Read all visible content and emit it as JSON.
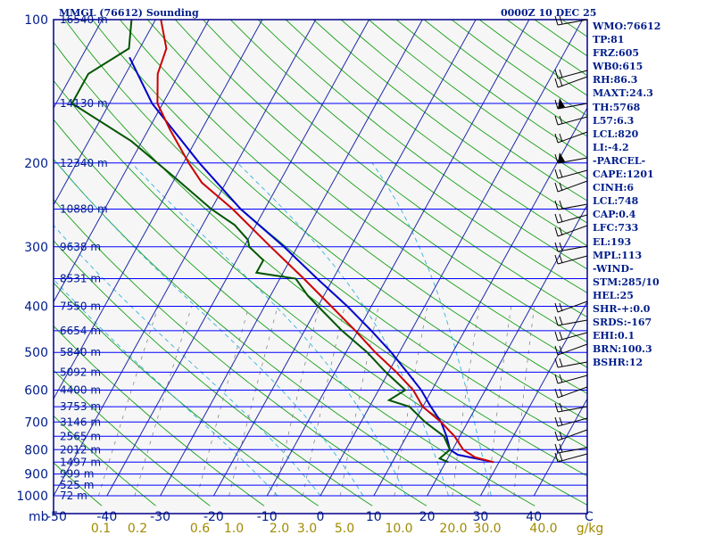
{
  "header": {
    "title": "MMGL (76612) Sounding",
    "time": "0000Z 10 DEC 25"
  },
  "stats": [
    "WMO:76612",
    "TP:81",
    "FRZ:605",
    "WB0:615",
    "RH:86.3",
    "MAXT:24.3",
    "TH:5768",
    "L57:6.3",
    "LCL:820",
    "LI:-4.2",
    "-PARCEL-",
    "CAPE:1201",
    "CINH:6",
    "LCL:748",
    "CAP:0.4",
    "LFC:733",
    "EL:193",
    "MPL:113",
    "-WIND-",
    "STM:285/10",
    "HEL:25",
    "SHR-+:0.0",
    "SRDS:-167",
    "EHI:0.1",
    "BRN:100.3",
    "BSHR:12"
  ],
  "colors": {
    "background_plot": "#f6f6f6",
    "frame": "#00008b",
    "isobar": "#0000ff",
    "isotherm": "#1e2aa8",
    "dry_adiabat": "#16a016",
    "moist_adiabat": "#33b3dd",
    "mixing_ratio": "#7a7a7a",
    "temperature": "#cc0000",
    "dewpoint": "#005500",
    "parcel": "#0000cc",
    "text": "#001d8a",
    "mixing_ratio_text": "#a08a00",
    "wind_barb": "#000000"
  },
  "chart_data": {
    "type": "skew-t",
    "pressure_ticks": [
      100,
      200,
      300,
      400,
      500,
      600,
      700,
      800,
      900,
      1000
    ],
    "pressure_unit_label": "mb",
    "temperature_ticks": [
      -50,
      -40,
      -30,
      -20,
      -10,
      0,
      10,
      20,
      30,
      40
    ],
    "xlabel_right": "C",
    "xlim": [
      -50,
      50
    ],
    "ylim": [
      1000,
      100
    ],
    "pressure_scale": "log",
    "mixing_ratio_labels": [
      "0.1",
      "0.2",
      "0.6",
      "1.0",
      "2.0",
      "3.0",
      "5.0",
      "10.0",
      "20.0",
      "30.0",
      "40.0"
    ],
    "mixing_ratio_unit": "g/kg",
    "height_levels": [
      {
        "p": 100,
        "label": "16540 m"
      },
      {
        "p": 150,
        "label": "14130 m"
      },
      {
        "p": 200,
        "label": "12340 m"
      },
      {
        "p": 250,
        "label": "10880 m"
      },
      {
        "p": 300,
        "label": "9638 m"
      },
      {
        "p": 350,
        "label": "8531 m"
      },
      {
        "p": 400,
        "label": "7550 m"
      },
      {
        "p": 450,
        "label": "6654 m"
      },
      {
        "p": 500,
        "label": "5840 m"
      },
      {
        "p": 550,
        "label": "5092 m"
      },
      {
        "p": 600,
        "label": "4400 m"
      },
      {
        "p": 650,
        "label": "3753 m"
      },
      {
        "p": 700,
        "label": "3146 m"
      },
      {
        "p": 750,
        "label": "2565 m"
      },
      {
        "p": 800,
        "label": "2012 m"
      },
      {
        "p": 850,
        "label": "1497 m"
      },
      {
        "p": 900,
        "label": "999 m"
      },
      {
        "p": 950,
        "label": "525 m"
      },
      {
        "p": 1000,
        "label": "72 m"
      }
    ],
    "temperature_profile": [
      {
        "p": 850,
        "t": 29.0
      },
      {
        "p": 830,
        "t": 25.0
      },
      {
        "p": 800,
        "t": 22.0
      },
      {
        "p": 750,
        "t": 19.0
      },
      {
        "p": 700,
        "t": 15.0
      },
      {
        "p": 650,
        "t": 10.0
      },
      {
        "p": 600,
        "t": 6.5
      },
      {
        "p": 550,
        "t": 1.5
      },
      {
        "p": 500,
        "t": -4.5
      },
      {
        "p": 450,
        "t": -10.5
      },
      {
        "p": 400,
        "t": -17.5
      },
      {
        "p": 350,
        "t": -25.5
      },
      {
        "p": 300,
        "t": -35.0
      },
      {
        "p": 250,
        "t": -46.0
      },
      {
        "p": 220,
        "t": -54.5
      },
      {
        "p": 200,
        "t": -59.0
      },
      {
        "p": 170,
        "t": -66.0
      },
      {
        "p": 150,
        "t": -71.0
      },
      {
        "p": 130,
        "t": -74.0
      },
      {
        "p": 115,
        "t": -75.0
      },
      {
        "p": 100,
        "t": -79.0
      }
    ],
    "dewpoint_profile": [
      {
        "p": 850,
        "t": 20.5
      },
      {
        "p": 835,
        "t": 18.5
      },
      {
        "p": 800,
        "t": 19.5
      },
      {
        "p": 750,
        "t": 17.0
      },
      {
        "p": 700,
        "t": 12.0
      },
      {
        "p": 650,
        "t": 7.5
      },
      {
        "p": 630,
        "t": 3.0
      },
      {
        "p": 600,
        "t": 5.0
      },
      {
        "p": 550,
        "t": -0.5
      },
      {
        "p": 500,
        "t": -6.0
      },
      {
        "p": 450,
        "t": -13.0
      },
      {
        "p": 400,
        "t": -20.0
      },
      {
        "p": 380,
        "t": -23.0
      },
      {
        "p": 350,
        "t": -27.0
      },
      {
        "p": 340,
        "t": -35.0
      },
      {
        "p": 320,
        "t": -35.0
      },
      {
        "p": 300,
        "t": -39.0
      },
      {
        "p": 290,
        "t": -40.0
      },
      {
        "p": 270,
        "t": -44.0
      },
      {
        "p": 250,
        "t": -50.0
      },
      {
        "p": 215,
        "t": -60.0
      },
      {
        "p": 180,
        "t": -72.0
      },
      {
        "p": 150,
        "t": -87.0
      },
      {
        "p": 130,
        "t": -87.0
      },
      {
        "p": 115,
        "t": -82.0
      },
      {
        "p": 100,
        "t": -84.5
      }
    ],
    "parcel_profile": [
      {
        "p": 850,
        "t": 29.0
      },
      {
        "p": 820,
        "t": 21.5
      },
      {
        "p": 800,
        "t": 19.5
      },
      {
        "p": 750,
        "t": 17.5
      },
      {
        "p": 700,
        "t": 15.0
      },
      {
        "p": 650,
        "t": 11.5
      },
      {
        "p": 600,
        "t": 8.0
      },
      {
        "p": 550,
        "t": 3.5
      },
      {
        "p": 500,
        "t": -1.5
      },
      {
        "p": 450,
        "t": -7.5
      },
      {
        "p": 400,
        "t": -14.5
      },
      {
        "p": 350,
        "t": -23.0
      },
      {
        "p": 300,
        "t": -32.5
      },
      {
        "p": 250,
        "t": -44.5
      },
      {
        "p": 200,
        "t": -57.0
      },
      {
        "p": 150,
        "t": -72.0
      },
      {
        "p": 120,
        "t": -81.0
      }
    ]
  }
}
